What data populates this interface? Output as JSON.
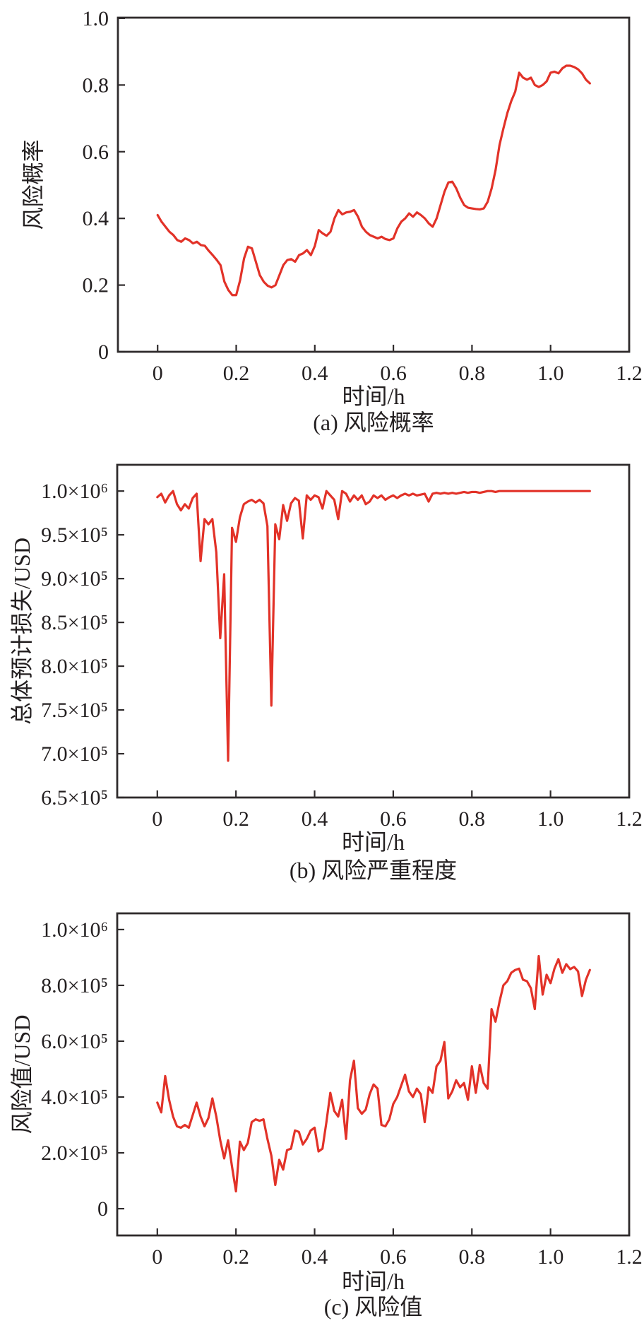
{
  "page": {
    "background": "#ffffff",
    "description": "Figure with three stacked time-series line charts: risk probability, overall expected loss (risk severity), and risk value"
  },
  "style": {
    "line_color": "#e23228",
    "axis_color": "#2f2b2c",
    "text_color": "#231f20"
  },
  "chart_data": [
    {
      "id": "a",
      "type": "line",
      "caption": "(a) 风险概率",
      "xlabel": "时间/h",
      "ylabel": "风险概率",
      "legend": null,
      "grid": false,
      "x_tick_values": [
        0,
        0.2,
        0.4,
        0.6,
        0.8,
        1.0,
        1.2
      ],
      "x_tick_labels": [
        "0",
        "0.2",
        "0.4",
        "0.6",
        "0.8",
        "1.0",
        "1.2"
      ],
      "y_tick_values": [
        0,
        0.2,
        0.4,
        0.6,
        0.8,
        1.0
      ],
      "y_tick_labels": [
        "0",
        "0.2",
        "0.4",
        "0.6",
        "0.8",
        "1.0"
      ],
      "xlim": [
        -0.101,
        1.2
      ],
      "ylim": [
        0,
        1.002
      ],
      "x_start": 0,
      "x_step": 0.01,
      "values": [
        0.41,
        0.39,
        0.375,
        0.36,
        0.35,
        0.335,
        0.33,
        0.34,
        0.335,
        0.325,
        0.33,
        0.32,
        0.318,
        0.303,
        0.29,
        0.276,
        0.26,
        0.21,
        0.185,
        0.17,
        0.17,
        0.215,
        0.28,
        0.315,
        0.31,
        0.27,
        0.23,
        0.21,
        0.198,
        0.193,
        0.2,
        0.23,
        0.26,
        0.275,
        0.278,
        0.27,
        0.29,
        0.295,
        0.305,
        0.29,
        0.317,
        0.365,
        0.355,
        0.348,
        0.36,
        0.4,
        0.425,
        0.412,
        0.418,
        0.42,
        0.425,
        0.405,
        0.375,
        0.36,
        0.35,
        0.345,
        0.34,
        0.345,
        0.338,
        0.335,
        0.34,
        0.37,
        0.39,
        0.4,
        0.415,
        0.405,
        0.418,
        0.41,
        0.4,
        0.385,
        0.375,
        0.4,
        0.44,
        0.48,
        0.508,
        0.51,
        0.49,
        0.462,
        0.44,
        0.432,
        0.43,
        0.428,
        0.427,
        0.43,
        0.45,
        0.49,
        0.545,
        0.62,
        0.67,
        0.716,
        0.752,
        0.78,
        0.837,
        0.822,
        0.816,
        0.822,
        0.8,
        0.794,
        0.8,
        0.811,
        0.837,
        0.84,
        0.835,
        0.85,
        0.858,
        0.858,
        0.854,
        0.847,
        0.835,
        0.816,
        0.805
      ]
    },
    {
      "id": "b",
      "type": "line",
      "caption": "(b) 风险严重程度",
      "xlabel": "时间/h",
      "ylabel": "总体预计损失/USD",
      "legend": null,
      "grid": false,
      "x_tick_values": [
        0,
        0.2,
        0.4,
        0.6,
        0.8,
        1.0,
        1.2
      ],
      "x_tick_labels": [
        "0",
        "0.2",
        "0.4",
        "0.6",
        "0.8",
        "1.0",
        "1.2"
      ],
      "y_tick_values": [
        650000,
        700000,
        750000,
        800000,
        850000,
        900000,
        950000,
        1000000
      ],
      "y_tick_labels": [
        "6.5×10⁵",
        "7.0×10⁵",
        "7.5×10⁵",
        "8.0×10⁵",
        "8.5×10⁵",
        "9.0×10⁵",
        "9.5×10⁵",
        "1.0×10⁶"
      ],
      "xlim": [
        -0.102,
        1.2
      ],
      "ylim": [
        650000,
        1030000
      ],
      "x_start": 0,
      "x_step": 0.01,
      "values": [
        993000,
        997000,
        987000,
        995000,
        1000000,
        985000,
        978000,
        985000,
        980000,
        992000,
        997000,
        920000,
        968000,
        962000,
        968000,
        930000,
        832000,
        905000,
        692000,
        958000,
        942000,
        970000,
        985000,
        988000,
        990000,
        987000,
        990000,
        986000,
        960000,
        755000,
        962000,
        945000,
        984000,
        966000,
        986000,
        992000,
        989000,
        946000,
        995000,
        990000,
        995000,
        993000,
        980000,
        1000000,
        995000,
        990000,
        968000,
        1000000,
        997000,
        988000,
        995000,
        990000,
        995000,
        985000,
        988000,
        995000,
        992000,
        995000,
        990000,
        993000,
        995000,
        992000,
        995000,
        997000,
        995000,
        997000,
        995000,
        996000,
        997000,
        988000,
        997000,
        998000,
        997000,
        998000,
        997000,
        998000,
        997000,
        998000,
        999000,
        998000,
        999000,
        999000,
        998000,
        999000,
        1000000,
        1000000,
        999000,
        1000000,
        1000000,
        1000000,
        1000000,
        1000000,
        1000000,
        1000000,
        1000000,
        1000000,
        1000000,
        1000000,
        1000000,
        1000000,
        1000000,
        1000000,
        1000000,
        1000000,
        1000000,
        1000000,
        1000000,
        1000000,
        1000000,
        1000000,
        1000000
      ]
    },
    {
      "id": "c",
      "type": "line",
      "caption": "(c) 风险值",
      "xlabel": "时间/h",
      "ylabel": "风险值/USD",
      "legend": null,
      "grid": false,
      "x_tick_values": [
        0,
        0.2,
        0.4,
        0.6,
        0.8,
        1.0,
        1.2
      ],
      "x_tick_labels": [
        "0",
        "0.2",
        "0.4",
        "0.6",
        "0.8",
        "1.0",
        "1.2"
      ],
      "y_tick_values": [
        0,
        200000,
        400000,
        600000,
        800000,
        1000000
      ],
      "y_tick_labels": [
        "0",
        "2.0×10⁵",
        "4.0×10⁵",
        "6.0×10⁵",
        "8.0×10⁵",
        "1.0×10⁶"
      ],
      "xlim": [
        -0.102,
        1.2
      ],
      "ylim": [
        -96000,
        1058000
      ],
      "x_start": 0,
      "x_step": 0.01,
      "values": [
        380000,
        345000,
        475000,
        390000,
        330000,
        295000,
        290000,
        300000,
        290000,
        335000,
        380000,
        330000,
        295000,
        325000,
        395000,
        330000,
        245000,
        180000,
        245000,
        150000,
        62000,
        240000,
        210000,
        235000,
        310000,
        320000,
        315000,
        320000,
        250000,
        190000,
        85000,
        175000,
        140000,
        210000,
        215000,
        280000,
        275000,
        230000,
        250000,
        280000,
        290000,
        205000,
        215000,
        310000,
        415000,
        350000,
        330000,
        390000,
        250000,
        460000,
        530000,
        360000,
        340000,
        355000,
        410000,
        445000,
        430000,
        300000,
        295000,
        320000,
        375000,
        400000,
        440000,
        480000,
        420000,
        400000,
        430000,
        410000,
        310000,
        435000,
        415000,
        510000,
        530000,
        597000,
        395000,
        420000,
        460000,
        435000,
        450000,
        390000,
        510000,
        415000,
        515000,
        450000,
        430000,
        715000,
        670000,
        740000,
        800000,
        815000,
        845000,
        855000,
        860000,
        820000,
        815000,
        790000,
        715000,
        905000,
        767000,
        838000,
        808000,
        860000,
        894000,
        845000,
        876000,
        858000,
        866000,
        850000,
        762000,
        820000,
        855000
      ]
    }
  ]
}
